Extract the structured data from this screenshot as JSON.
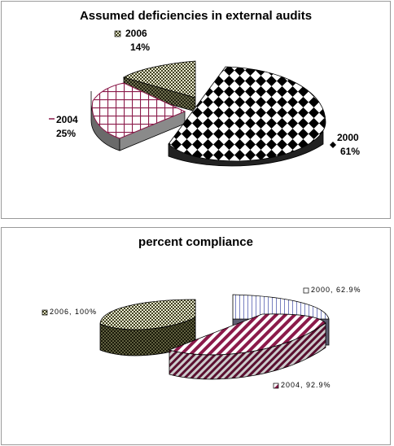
{
  "charts": [
    {
      "title": "Assumed deficiencies in external audits",
      "labels": [
        {
          "name": "2000",
          "pct": "61%"
        },
        {
          "name": "2004",
          "pct": "25%"
        },
        {
          "name": "2006",
          "pct": "14%"
        }
      ]
    },
    {
      "title": "percent compliance",
      "labels": [
        "2000, 62.9%",
        "2004, 92.9%",
        "2006, 100%"
      ]
    }
  ],
  "chart_data": [
    {
      "type": "pie",
      "title": "Assumed deficiencies in external audits",
      "categories": [
        "2000",
        "2004",
        "2006"
      ],
      "values": [
        61,
        25,
        14
      ],
      "unit": "%",
      "exploded": true,
      "three_d": true,
      "legend": "none (data labels next to slices)",
      "patterns": {
        "2000": "black diamonds",
        "2004": "maroon grid",
        "2006": "olive checker"
      }
    },
    {
      "type": "pie",
      "title": "percent compliance",
      "categories": [
        "2000",
        "2004",
        "2006"
      ],
      "values": [
        62.9,
        92.9,
        100
      ],
      "data_labels": [
        "2000, 62.9%",
        "2004, 92.9%",
        "2006, 100%"
      ],
      "exploded": true,
      "three_d": true,
      "legend": "none (data labels next to slices)",
      "patterns": {
        "2000": "blue vertical lines",
        "2004": "maroon diagonal stripes",
        "2006": "olive checker"
      }
    }
  ]
}
